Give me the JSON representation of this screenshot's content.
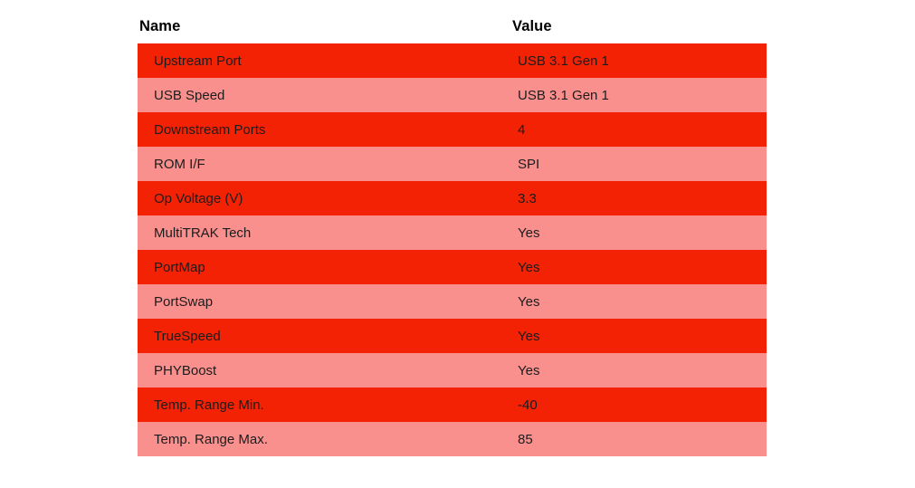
{
  "chart_data": {
    "type": "table",
    "columns": [
      "Name",
      "Value"
    ],
    "rows": [
      {
        "name": "Upstream Port",
        "value": "USB 3.1 Gen 1"
      },
      {
        "name": "USB Speed",
        "value": "USB 3.1 Gen 1"
      },
      {
        "name": "Downstream Ports",
        "value": "4"
      },
      {
        "name": "ROM I/F",
        "value": "SPI"
      },
      {
        "name": "Op Voltage (V)",
        "value": "3.3"
      },
      {
        "name": "MultiTRAK Tech",
        "value": "Yes"
      },
      {
        "name": "PortMap",
        "value": "Yes"
      },
      {
        "name": "PortSwap",
        "value": "Yes"
      },
      {
        "name": "TrueSpeed",
        "value": "Yes"
      },
      {
        "name": "PHYBoost",
        "value": "Yes"
      },
      {
        "name": "Temp. Range Min.",
        "value": "-40"
      },
      {
        "name": "Temp. Range Max.",
        "value": "85"
      }
    ],
    "layout_hints": {
      "striping": "odd rows bright red, even rows salmon pink",
      "header_background": "white",
      "grid": "off"
    }
  },
  "colors": {
    "row_odd_background": "#f32205",
    "row_even_background": "#fa908e",
    "header_text": "#000000",
    "cell_text": "#1c1c1c",
    "page_background": "#ffffff"
  }
}
